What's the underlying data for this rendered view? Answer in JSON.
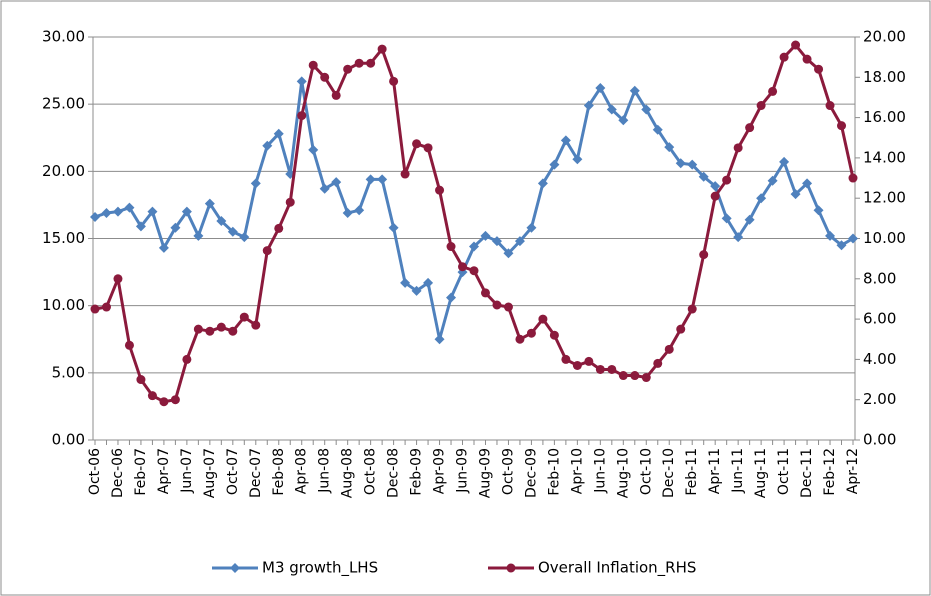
{
  "chart_data": {
    "type": "line",
    "categories": [
      "Oct-06",
      null,
      "Dec-06",
      null,
      "Feb-07",
      null,
      "Apr-07",
      null,
      "Jun-07",
      null,
      "Aug-07",
      null,
      "Oct-07",
      null,
      "Dec-07",
      null,
      "Feb-08",
      null,
      "Apr-08",
      null,
      "Jun-08",
      null,
      "Aug-08",
      null,
      "Oct-08",
      null,
      "Dec-08",
      null,
      "Feb-09",
      null,
      "Apr-09",
      null,
      "Jun-09",
      null,
      "Aug-09",
      null,
      "Oct-09",
      null,
      "Dec-09",
      null,
      "Feb-10",
      null,
      "Apr-10",
      null,
      "Jun-10",
      null,
      "Aug-10",
      null,
      "Oct-10",
      null,
      "Dec-10",
      null,
      "Feb-11",
      null,
      "Apr-11",
      null,
      "Jun-11",
      null,
      "Aug-11",
      null,
      "Oct-11",
      null,
      "Dec-11",
      null,
      "Feb-12",
      null,
      "Apr-12"
    ],
    "series": [
      {
        "name": "M3 growth_LHS",
        "color": "#4f81bd",
        "marker": "diamond",
        "values": [
          16.6,
          16.9,
          17.0,
          17.3,
          15.9,
          17.0,
          14.3,
          15.8,
          17.0,
          15.2,
          17.6,
          16.3,
          15.5,
          15.1,
          19.1,
          21.9,
          22.8,
          19.8,
          26.7,
          21.6,
          18.7,
          19.2,
          16.9,
          17.1,
          19.4,
          19.4,
          15.8,
          11.7,
          11.1,
          11.7,
          7.5,
          10.6,
          12.5,
          14.4,
          15.2,
          14.8,
          13.9,
          14.8,
          15.8,
          19.1,
          20.5,
          22.3,
          20.9,
          24.9,
          26.2,
          24.6,
          23.8,
          26.0,
          24.6,
          23.1,
          21.8,
          20.6,
          20.5,
          19.6,
          18.9,
          16.5,
          15.1,
          16.4,
          18.0,
          19.3,
          20.7,
          18.3,
          19.1,
          17.1,
          15.2,
          14.5,
          15.0
        ]
      },
      {
        "name": "Overall Inflation_RHS",
        "color": "#8b1a3c",
        "marker": "circle",
        "axis": "y2",
        "values": [
          6.5,
          6.6,
          8.0,
          4.7,
          3.0,
          2.2,
          1.9,
          2.0,
          4.0,
          5.5,
          5.4,
          5.6,
          5.4,
          6.1,
          5.7,
          9.4,
          10.5,
          11.8,
          16.1,
          18.6,
          18.0,
          17.1,
          18.4,
          18.7,
          18.7,
          19.4,
          17.8,
          13.2,
          14.7,
          14.5,
          12.4,
          9.6,
          8.6,
          8.4,
          7.3,
          6.7,
          6.6,
          5.0,
          5.3,
          6.0,
          5.2,
          4.0,
          3.7,
          3.9,
          3.5,
          3.5,
          3.2,
          3.2,
          3.1,
          3.8,
          4.5,
          5.5,
          6.5,
          9.2,
          12.1,
          12.9,
          14.5,
          15.5,
          16.6,
          17.3,
          19.0,
          19.6,
          18.9,
          18.4,
          16.6,
          15.6,
          13.0
        ]
      }
    ],
    "ylim": [
      0,
      30
    ],
    "yticks": [
      {
        "value": 0,
        "label": "0.00"
      },
      {
        "value": 5,
        "label": "5.00"
      },
      {
        "value": 10,
        "label": "10.00"
      },
      {
        "value": 15,
        "label": "15.00"
      },
      {
        "value": 20,
        "label": "20.00"
      },
      {
        "value": 25,
        "label": "25.00"
      },
      {
        "value": 30,
        "label": "30.00"
      }
    ],
    "y2lim": [
      0,
      20
    ],
    "y2ticks": [
      {
        "value": 0,
        "label": "0.00"
      },
      {
        "value": 2,
        "label": "2.00"
      },
      {
        "value": 4,
        "label": "4.00"
      },
      {
        "value": 6,
        "label": "6.00"
      },
      {
        "value": 8,
        "label": "8.00"
      },
      {
        "value": 10,
        "label": "10.00"
      },
      {
        "value": 12,
        "label": "12.00"
      },
      {
        "value": 14,
        "label": "14.00"
      },
      {
        "value": 16,
        "label": "16.00"
      },
      {
        "value": 18,
        "label": "18.00"
      },
      {
        "value": 20,
        "label": "20.00"
      }
    ],
    "grid": true,
    "legend": "bottom"
  }
}
